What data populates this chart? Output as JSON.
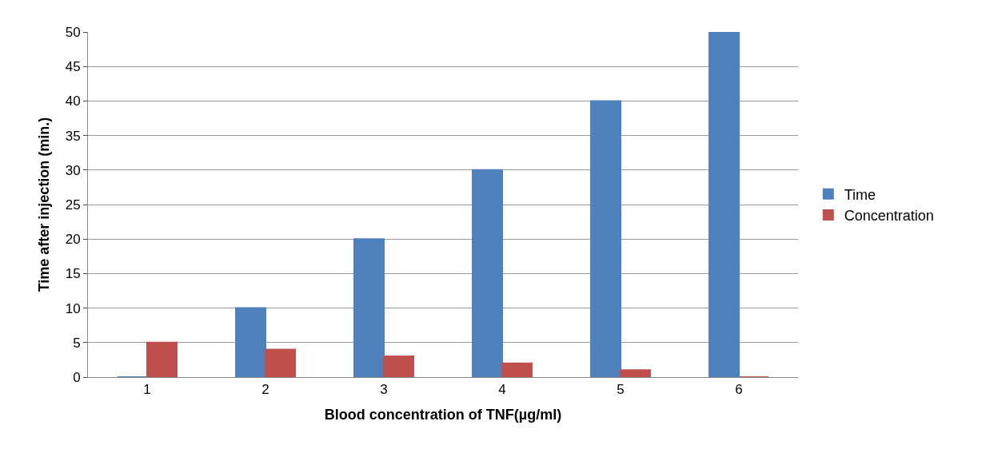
{
  "chart_data": {
    "type": "bar",
    "xlabel": "Blood concentration of TNF(µg/ml)",
    "ylabel": "Time after injection (min.)",
    "categories": [
      "1",
      "2",
      "3",
      "4",
      "5",
      "6"
    ],
    "series": [
      {
        "name": "Time",
        "color": "#4f81bd",
        "values": [
          0,
          10,
          20,
          30,
          40,
          50
        ]
      },
      {
        "name": "Concentration",
        "color": "#c0504d",
        "values": [
          5,
          4,
          3,
          2,
          1,
          0
        ]
      }
    ],
    "ylim": [
      0,
      50
    ],
    "yticks": [
      0,
      5,
      10,
      15,
      20,
      25,
      30,
      35,
      40,
      45,
      50
    ],
    "grid": true,
    "legend": "right"
  }
}
